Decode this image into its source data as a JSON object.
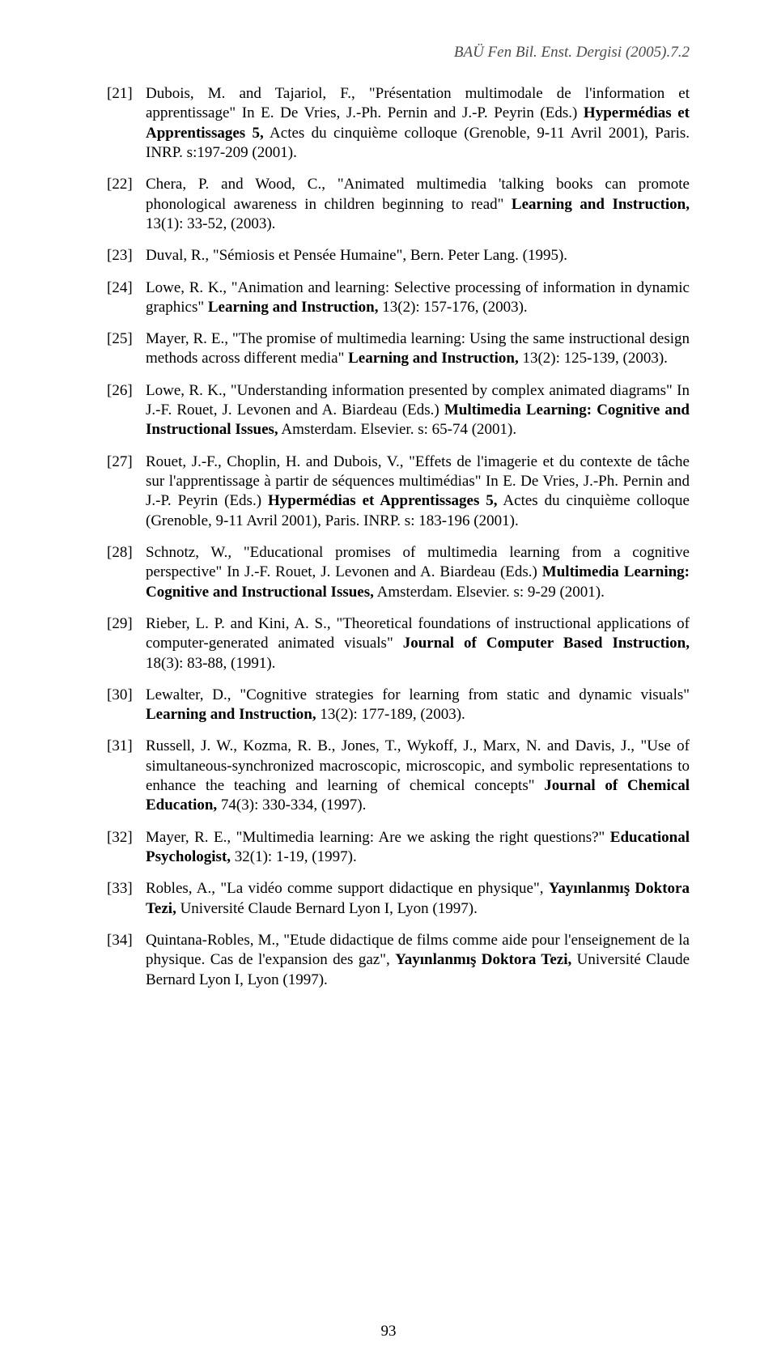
{
  "running_head": "BAÜ Fen Bil. Enst. Dergisi (2005).7.2",
  "page_number": "93",
  "refs": [
    {
      "num": "[21]",
      "html": "Dubois, M. and Tajariol, F., \"Présentation multimodale de l'information et apprentissage\" In E. De Vries, J.-Ph. Pernin and J.-P. Peyrin (Eds.) <b>Hypermédias et Apprentissages 5,</b> Actes du cinquième colloque (Grenoble, 9-11 Avril 2001), Paris. INRP. s:197-209 (2001)."
    },
    {
      "num": "[22]",
      "html": "Chera, P. and Wood, C., \"Animated multimedia 'talking books can promote phonological awareness in children beginning to read\" <b>Learning and Instruction,</b> 13(1): 33-52, (2003)."
    },
    {
      "num": "[23]",
      "html": "Duval, R., \"Sémiosis et Pensée Humaine\", Bern. Peter Lang. (1995)."
    },
    {
      "num": "[24]",
      "html": "Lowe, R. K., \"Animation and learning: Selective processing of information in dynamic graphics\" <b>Learning and Instruction,</b> 13(2): 157-176, (2003)."
    },
    {
      "num": "[25]",
      "html": "Mayer, R. E., \"The promise of multimedia learning: Using the same instructional design methods across different media\" <b>Learning and Instruction,</b> 13(2): 125-139, (2003)."
    },
    {
      "num": "[26]",
      "html": "Lowe, R. K., \"Understanding information presented by complex animated diagrams\" In J.-F. Rouet, J. Levonen and A. Biardeau (Eds.) <b>Multimedia Learning: Cognitive and Instructional Issues,</b> Amsterdam. Elsevier. s: 65-74 (2001)."
    },
    {
      "num": "[27]",
      "html": "Rouet, J.-F., Choplin, H. and Dubois, V., \"Effets de l'imagerie et du contexte de tâche sur l'apprentissage à partir de séquences multimédias\" In E. De Vries, J.-Ph. Pernin and J.-P. Peyrin (Eds.) <b>Hypermédias et Apprentissages 5,</b> Actes du cinquième colloque (Grenoble, 9-11 Avril 2001), Paris. INRP. s: 183-196 (2001)."
    },
    {
      "num": "[28]",
      "html": "Schnotz, W., \"Educational promises of multimedia learning from a cognitive perspective\" In J.-F. Rouet, J. Levonen and A. Biardeau (Eds.) <b>Multimedia Learning: Cognitive and Instructional Issues,</b> Amsterdam. Elsevier. s: 9-29 (2001)."
    },
    {
      "num": "[29]",
      "html": "Rieber, L. P. and Kini, A. S., \"Theoretical foundations of instructional applications of computer-generated animated visuals\" <b>Journal of Computer Based Instruction,</b> 18(3): 83-88, (1991)."
    },
    {
      "num": "[30]",
      "html": "Lewalter, D., \"Cognitive strategies for learning from static and dynamic visuals\" <b>Learning and Instruction,</b> 13(2): 177-189, (2003)."
    },
    {
      "num": "[31]",
      "html": "Russell, J. W., Kozma, R. B., Jones, T., Wykoff, J., Marx, N. and Davis, J., \"Use of simultaneous-synchronized macroscopic, microscopic, and symbolic representations to enhance the teaching and learning of chemical concepts\" <b>Journal of Chemical Education,</b> 74(3): 330-334, (1997)."
    },
    {
      "num": "[32]",
      "html": "Mayer, R. E., \"Multimedia learning: Are we asking the right questions?\" <b>Educational Psychologist,</b> 32(1): 1-19, (1997)."
    },
    {
      "num": "[33]",
      "html": "Robles, A., \"La vidéo comme support didactique en physique\", <b>Yayınlanmış Doktora Tezi,</b> Université Claude Bernard Lyon I, Lyon (1997)."
    },
    {
      "num": "[34]",
      "html": "Quintana-Robles, M., \"Etude didactique de films comme aide pour l'enseignement de la physique. Cas de l'expansion des gaz\", <b>Yayınlanmış Doktora Tezi,</b> Université Claude Bernard Lyon I, Lyon (1997)."
    }
  ]
}
